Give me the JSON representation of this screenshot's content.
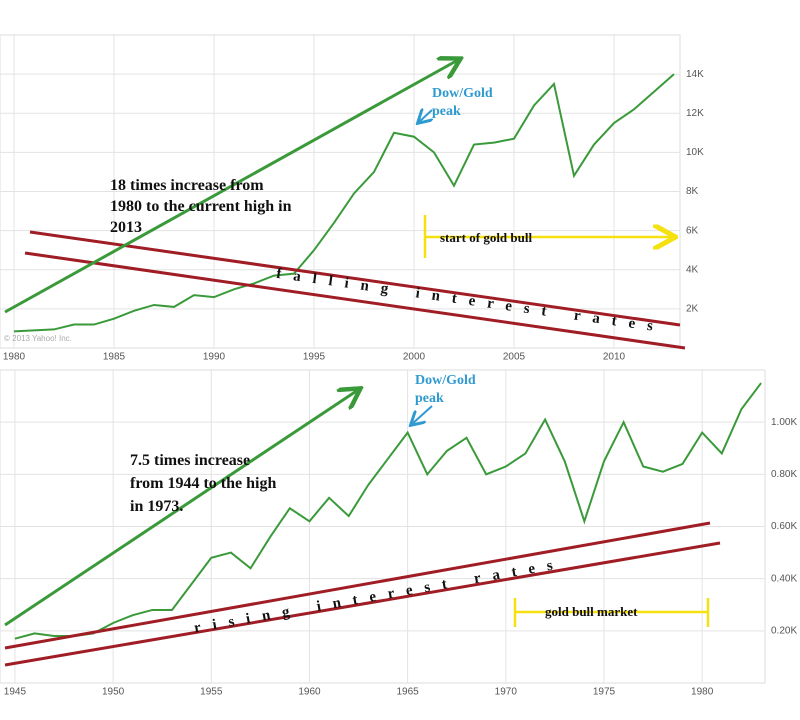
{
  "chart_data": [
    {
      "type": "line",
      "x": [
        1980,
        1981,
        1982,
        1983,
        1984,
        1985,
        1986,
        1987,
        1988,
        1989,
        1990,
        1991,
        1992,
        1993,
        1994,
        1995,
        1996,
        1997,
        1998,
        1999,
        2000,
        2001,
        2002,
        2003,
        2004,
        2005,
        2006,
        2007,
        2008,
        2009,
        2010,
        2011,
        2012,
        2013
      ],
      "series": [
        {
          "color": "#3a9a3a",
          "values": [
            850,
            900,
            950,
            1200,
            1200,
            1500,
            1900,
            2200,
            2100,
            2700,
            2600,
            3000,
            3300,
            3700,
            3800,
            5000,
            6400,
            7900,
            9000,
            11000,
            10800,
            10000,
            8300,
            10400,
            10500,
            10700,
            12400,
            13500,
            8800,
            10400,
            11500,
            12200,
            13100,
            14000
          ]
        }
      ],
      "xlim": [
        1979.3,
        2013.3
      ],
      "xticks": [
        1980,
        1985,
        1990,
        1995,
        2000,
        2005,
        2010
      ],
      "ylim": [
        0,
        16000
      ],
      "yticks": [
        {
          "value": 2000,
          "label": "2K"
        },
        {
          "value": 4000,
          "label": "4K"
        },
        {
          "value": 6000,
          "label": "6K"
        },
        {
          "value": 8000,
          "label": "8K"
        },
        {
          "value": 10000,
          "label": "10K"
        },
        {
          "value": 12000,
          "label": "12K"
        },
        {
          "value": 14000,
          "label": "14K"
        }
      ],
      "grid": true,
      "annotations": {
        "increase": [
          "18 times increase from",
          "1980 to the current high in",
          "2013"
        ],
        "peak": [
          "Dow/Gold",
          "peak"
        ],
        "rates": "falling interest rates",
        "gold": "start of gold bull",
        "copyright": "© 2013 Yahoo! Inc."
      }
    },
    {
      "type": "line",
      "x": [
        1945,
        1946,
        1947,
        1948,
        1949,
        1950,
        1951,
        1952,
        1953,
        1954,
        1955,
        1956,
        1957,
        1958,
        1959,
        1960,
        1961,
        1962,
        1963,
        1964,
        1965,
        1966,
        1967,
        1968,
        1969,
        1970,
        1971,
        1972,
        1973,
        1974,
        1975,
        1976,
        1977,
        1978,
        1979,
        1980,
        1981,
        1982,
        1983
      ],
      "series": [
        {
          "color": "#3a9a3a",
          "values": [
            170,
            190,
            180,
            180,
            190,
            230,
            260,
            280,
            280,
            380,
            480,
            500,
            440,
            560,
            670,
            620,
            710,
            640,
            760,
            860,
            960,
            800,
            890,
            940,
            800,
            830,
            880,
            1010,
            850,
            620,
            850,
            1000,
            830,
            810,
            840,
            960,
            880,
            1050,
            1150
          ]
        }
      ],
      "xlim": [
        1944.24,
        1983.2
      ],
      "xticks": [
        1945,
        1950,
        1955,
        1960,
        1965,
        1970,
        1975,
        1980
      ],
      "ylim": [
        0,
        1200
      ],
      "yticks": [
        {
          "value": 200,
          "label": "0.20K"
        },
        {
          "value": 400,
          "label": "0.40K"
        },
        {
          "value": 600,
          "label": "0.60K"
        },
        {
          "value": 800,
          "label": "0.80K"
        },
        {
          "value": 1000,
          "label": "1.00K"
        }
      ],
      "grid": true,
      "annotations": {
        "increase": [
          "7.5 times increase",
          "from 1944 to the high",
          "in 1973."
        ],
        "peak": [
          "Dow/Gold",
          "peak"
        ],
        "rates": "rising interest rates",
        "gold": "gold bull market"
      }
    }
  ]
}
